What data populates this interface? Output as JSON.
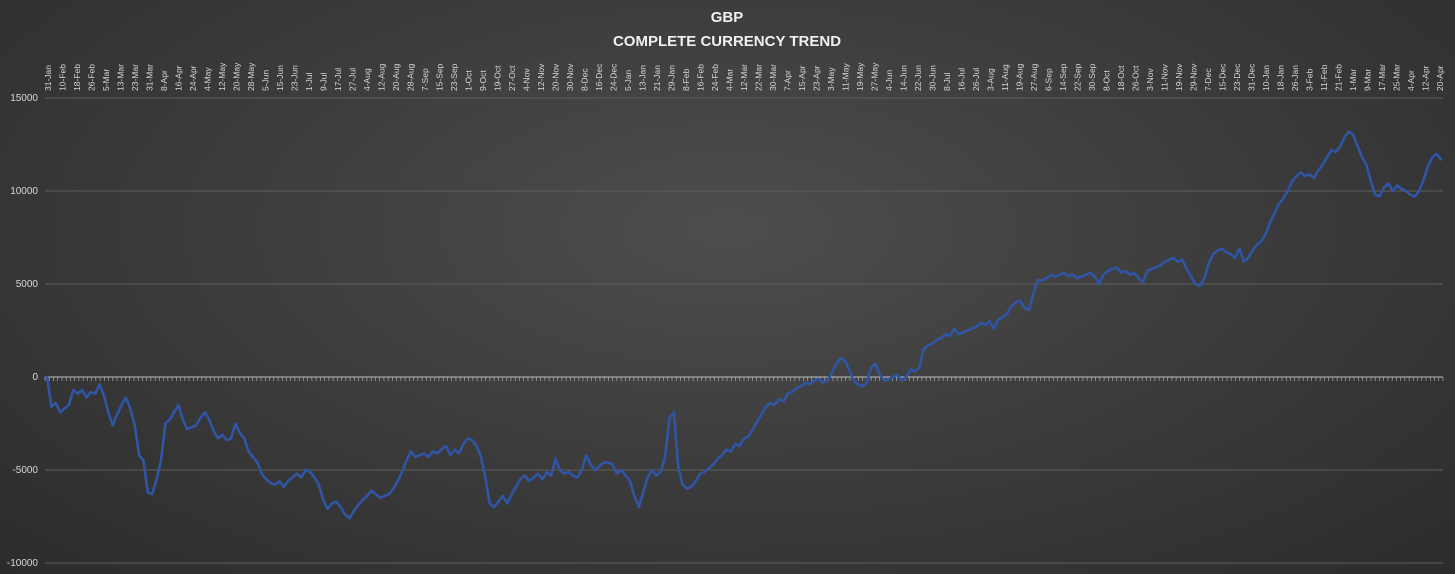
{
  "chart_data": {
    "type": "line",
    "title": "GBP",
    "subtitle": "COMPLETE CURRENCY TREND",
    "xlabel": "",
    "ylabel": "",
    "ylim": [
      -10000,
      15000
    ],
    "yticks": [
      -10000,
      -5000,
      0,
      5000,
      10000,
      15000
    ],
    "grid": true,
    "legend": "none",
    "line_color": "#2f55a4",
    "x_tick_labels": [
      "31-Jan",
      "10-Feb",
      "18-Feb",
      "26-Feb",
      "5-Mar",
      "13-Mar",
      "23-Mar",
      "31-Mar",
      "8-Apr",
      "16-Apr",
      "24-Apr",
      "4-May",
      "12-May",
      "20-May",
      "28-May",
      "5-Jun",
      "15-Jun",
      "23-Jun",
      "1-Jul",
      "9-Jul",
      "17-Jul",
      "27-Jul",
      "4-Aug",
      "12-Aug",
      "20-Aug",
      "28-Aug",
      "7-Sep",
      "15-Sep",
      "23-Sep",
      "1-Oct",
      "9-Oct",
      "19-Oct",
      "27-Oct",
      "4-Nov",
      "12-Nov",
      "20-Nov",
      "30-Nov",
      "8-Dec",
      "16-Dec",
      "24-Dec",
      "5-Jan",
      "13-Jan",
      "21-Jan",
      "29-Jan",
      "8-Feb",
      "16-Feb",
      "24-Feb",
      "4-Mar",
      "12-Mar",
      "22-Mar",
      "30-Mar",
      "7-Apr",
      "15-Apr",
      "23-Apr",
      "3-May",
      "11-May",
      "19-May",
      "27-May",
      "4-Jun",
      "14-Jun",
      "22-Jun",
      "30-Jun",
      "8-Jul",
      "16-Jul",
      "26-Jul",
      "3-Aug",
      "11-Aug",
      "19-Aug",
      "27-Aug",
      "6-Sep",
      "14-Sep",
      "22-Sep",
      "30-Sep",
      "8-Oct",
      "18-Oct",
      "26-Oct",
      "3-Nov",
      "11-Nov",
      "19-Nov",
      "29-Nov",
      "7-Dec",
      "15-Dec",
      "23-Dec",
      "31-Dec",
      "10-Jan",
      "18-Jan",
      "26-Jan",
      "3-Feb",
      "11-Feb",
      "21-Feb",
      "1-Mar",
      "9-Mar",
      "17-Mar",
      "25-Mar",
      "4-Apr",
      "12-Apr",
      "20-Apr"
    ],
    "series": [
      {
        "values": [
          0,
          -1600,
          -1400,
          -1900,
          -1700,
          -1500,
          -700,
          -900,
          -700,
          -1100,
          -800,
          -900,
          -400,
          -1000,
          -1900,
          -2600,
          -2000,
          -1500,
          -1100,
          -1700,
          -2600,
          -4200,
          -4500,
          -6200,
          -6300,
          -5500,
          -4500,
          -2500,
          -2300,
          -1900,
          -1500,
          -2300,
          -2800,
          -2700,
          -2600,
          -2200,
          -1900,
          -2300,
          -2900,
          -3300,
          -3100,
          -3400,
          -3300,
          -2500,
          -3000,
          -3300,
          -4000,
          -4300,
          -4600,
          -5200,
          -5500,
          -5700,
          -5800,
          -5600,
          -5900,
          -5600,
          -5400,
          -5200,
          -5400,
          -5000,
          -5100,
          -5400,
          -5800,
          -6600,
          -7100,
          -6800,
          -6700,
          -7000,
          -7400,
          -7600,
          -7200,
          -6900,
          -6600,
          -6400,
          -6100,
          -6300,
          -6500,
          -6400,
          -6300,
          -6000,
          -5600,
          -5100,
          -4500,
          -4000,
          -4300,
          -4200,
          -4100,
          -4300,
          -4000,
          -4100,
          -3900,
          -3700,
          -4200,
          -3900,
          -4100,
          -3600,
          -3300,
          -3400,
          -3700,
          -4300,
          -5400,
          -6800,
          -7000,
          -6700,
          -6400,
          -6800,
          -6300,
          -5900,
          -5500,
          -5300,
          -5600,
          -5400,
          -5200,
          -5500,
          -5100,
          -5300,
          -4400,
          -5000,
          -5200,
          -5100,
          -5300,
          -5400,
          -5000,
          -4200,
          -4700,
          -5000,
          -4800,
          -4600,
          -4600,
          -4700,
          -5200,
          -5000,
          -5300,
          -5600,
          -6400,
          -7000,
          -6200,
          -5400,
          -5000,
          -5300,
          -5100,
          -4300,
          -2200,
          -1900,
          -4800,
          -5800,
          -6000,
          -5900,
          -5600,
          -5200,
          -5100,
          -4900,
          -4700,
          -4400,
          -4200,
          -3900,
          -4000,
          -3600,
          -3700,
          -3300,
          -3200,
          -2800,
          -2400,
          -2000,
          -1600,
          -1400,
          -1500,
          -1200,
          -1300,
          -900,
          -800,
          -600,
          -500,
          -300,
          -400,
          -200,
          -100,
          -300,
          -200,
          200,
          700,
          1000,
          900,
          400,
          -200,
          -400,
          -500,
          -300,
          500,
          700,
          100,
          -200,
          -100,
          0,
          100,
          -200,
          0,
          400,
          300,
          500,
          1500,
          1700,
          1800,
          2000,
          2100,
          2300,
          2200,
          2600,
          2300,
          2400,
          2500,
          2600,
          2700,
          2900,
          2800,
          3000,
          2600,
          3100,
          3200,
          3400,
          3800,
          4000,
          4100,
          3700,
          3600,
          4500,
          5200,
          5200,
          5300,
          5500,
          5400,
          5500,
          5600,
          5400,
          5500,
          5300,
          5400,
          5500,
          5600,
          5400,
          5000,
          5500,
          5700,
          5800,
          5900,
          5600,
          5700,
          5500,
          5600,
          5300,
          5100,
          5700,
          5800,
          5900,
          6000,
          6200,
          6300,
          6400,
          6200,
          6300,
          5800,
          5400,
          5000,
          4900,
          5300,
          6100,
          6600,
          6800,
          6900,
          6700,
          6600,
          6400,
          6900,
          6200,
          6400,
          6800,
          7100,
          7300,
          7700,
          8300,
          8800,
          9300,
          9600,
          10000,
          10500,
          10800,
          11000,
          10800,
          10900,
          10700,
          11100,
          11400,
          11800,
          12200,
          12100,
          12400,
          12900,
          13200,
          13000,
          12400,
          11800,
          11400,
          10500,
          9800,
          9700,
          10200,
          10400,
          10000,
          10300,
          10100,
          10000,
          9800,
          9700,
          10000,
          10600,
          11300,
          11800,
          12000,
          11700
        ]
      }
    ]
  }
}
